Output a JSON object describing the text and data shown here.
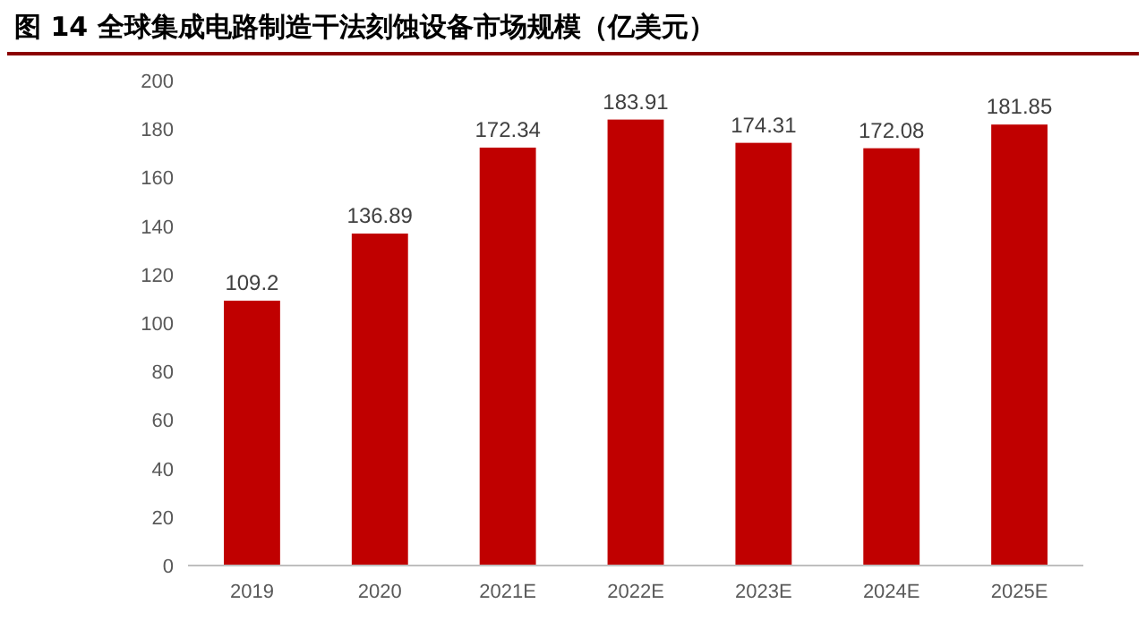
{
  "chart_data": {
    "type": "bar",
    "title": "图 14 全球集成电路制造干法刻蚀设备市场规模（亿美元）",
    "categories": [
      "2019",
      "2020",
      "2021E",
      "2022E",
      "2023E",
      "2024E",
      "2025E"
    ],
    "values": [
      109.2,
      136.89,
      172.34,
      183.91,
      174.31,
      172.08,
      181.85
    ],
    "value_labels": [
      "109.2",
      "136.89",
      "172.34",
      "183.91",
      "174.31",
      "172.08",
      "181.85"
    ],
    "color": "#c00000",
    "ylim": [
      0,
      200
    ],
    "yticks": [
      0,
      20,
      40,
      60,
      80,
      100,
      120,
      140,
      160,
      180,
      200
    ]
  }
}
